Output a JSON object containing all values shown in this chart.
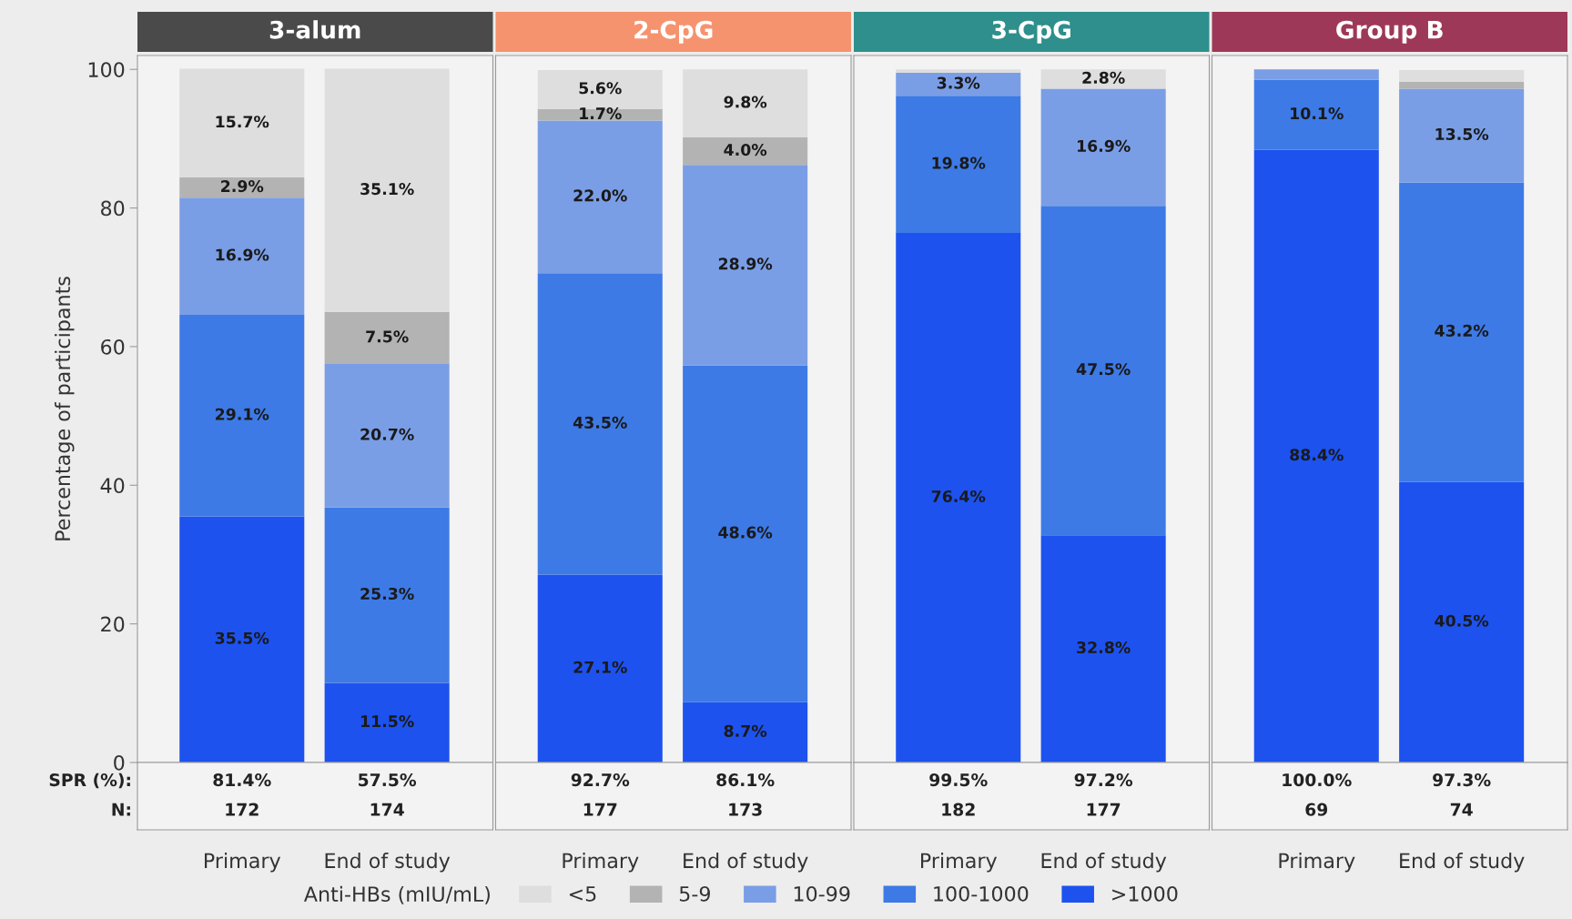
{
  "chart_data": [
    {
      "type": "bar",
      "title": "3-alum",
      "ylabel": "Percentage of participants",
      "categories": [
        "Primary",
        "End of study"
      ],
      "stacked": true,
      "ylim": [
        0,
        102
      ],
      "yticks": [
        0,
        20,
        40,
        60,
        80,
        100
      ],
      "legend": "bottom",
      "legend_title": "Anti-HBs (mIU/mL)",
      "series": [
        {
          "name": ">1000",
          "color": "#1d52ef",
          "values": [
            35.5,
            11.5
          ],
          "value_labels": [
            "35.5%",
            "11.5%"
          ]
        },
        {
          "name": "100-1000",
          "color": "#3d7ae6",
          "values": [
            29.1,
            25.3
          ],
          "value_labels": [
            "29.1%",
            "25.3%"
          ]
        },
        {
          "name": "10-99",
          "color": "#7a9ee6",
          "values": [
            16.9,
            20.7
          ],
          "value_labels": [
            "16.9%",
            "20.7%"
          ]
        },
        {
          "name": "5-9",
          "color": "#b3b3b3",
          "values": [
            2.9,
            7.5
          ],
          "value_labels": [
            "2.9%",
            "7.5%"
          ]
        },
        {
          "name": "<5",
          "color": "#dedede",
          "values": [
            15.7,
            35.1
          ],
          "value_labels": [
            "15.7%",
            "35.1%"
          ]
        }
      ],
      "annotations": [
        "SPR (%):",
        "81.4%",
        "57.5%",
        "N:",
        "172",
        "174"
      ]
    },
    {
      "type": "bar",
      "title": "2-CpG",
      "categories": [
        "Primary",
        "End of study"
      ],
      "stacked": true,
      "ylim": [
        0,
        102
      ],
      "yticks": [
        0,
        20,
        40,
        60,
        80,
        100
      ],
      "tick_labels": "x",
      "series": [
        {
          "color": "#1d52ef",
          "values": [
            27.1,
            8.7
          ],
          "value_labels": [
            "27.1%",
            "8.7%"
          ]
        },
        {
          "color": "#3d7ae6",
          "values": [
            43.5,
            48.6
          ],
          "value_labels": [
            "43.5%",
            "48.6%"
          ]
        },
        {
          "color": "#7a9ee6",
          "values": [
            22.0,
            28.9
          ],
          "value_labels": [
            "22.0%",
            "28.9%"
          ]
        },
        {
          "color": "#b3b3b3",
          "values": [
            1.7,
            4.0
          ],
          "value_labels": [
            "1.7%",
            "4.0%"
          ]
        },
        {
          "color": "#dedede",
          "values": [
            5.6,
            9.8
          ],
          "value_labels": [
            "5.6%",
            "9.8%"
          ]
        }
      ],
      "annotations": [
        "92.7%",
        "86.1%",
        "177",
        "173"
      ]
    },
    {
      "type": "bar",
      "title": "3-CpG",
      "categories": [
        "Primary",
        "End of study"
      ],
      "stacked": true,
      "ylim": [
        0,
        102
      ],
      "yticks": [
        0,
        20,
        40,
        60,
        80,
        100
      ],
      "tick_labels": "x",
      "series": [
        {
          "color": "#1d52ef",
          "values": [
            76.4,
            32.8
          ],
          "value_labels": [
            "76.4%",
            "32.8%"
          ]
        },
        {
          "color": "#3d7ae6",
          "values": [
            19.8,
            47.5
          ],
          "value_labels": [
            "19.8%",
            "47.5%"
          ]
        },
        {
          "color": "#7a9ee6",
          "values": [
            3.3,
            16.9
          ],
          "value_labels": [
            "3.3%",
            "16.9%"
          ]
        },
        {
          "color": "#b3b3b3",
          "values": [
            0,
            0
          ],
          "value_labels": [
            null,
            null
          ]
        },
        {
          "color": "#dedede",
          "values": [
            0.5,
            2.8
          ],
          "value_labels": [
            null,
            "2.8%"
          ]
        }
      ],
      "annotations": [
        "99.5%",
        "97.2%",
        "182",
        "177"
      ]
    },
    {
      "type": "bar",
      "title": "Group B",
      "categories": [
        "Primary",
        "End of study"
      ],
      "stacked": true,
      "ylim": [
        0,
        102
      ],
      "yticks": [
        0,
        20,
        40,
        60,
        80,
        100
      ],
      "tick_labels": "x",
      "series": [
        {
          "color": "#1d52ef",
          "values": [
            88.4,
            40.5
          ],
          "value_labels": [
            "88.4%",
            "40.5%"
          ]
        },
        {
          "color": "#3d7ae6",
          "values": [
            10.1,
            43.2
          ],
          "value_labels": [
            "10.1%",
            "43.2%"
          ]
        },
        {
          "color": "#7a9ee6",
          "values": [
            1.5,
            13.5
          ],
          "value_labels": [
            null,
            "13.5%"
          ]
        },
        {
          "color": "#b3b3b3",
          "values": [
            0,
            1.0
          ],
          "value_labels": [
            null,
            null
          ]
        },
        {
          "color": "#dedede",
          "values": [
            0,
            1.7
          ],
          "value_labels": [
            null,
            null
          ]
        }
      ],
      "annotations": [
        "100.0%",
        "97.3%",
        "69",
        "74"
      ]
    }
  ]
}
